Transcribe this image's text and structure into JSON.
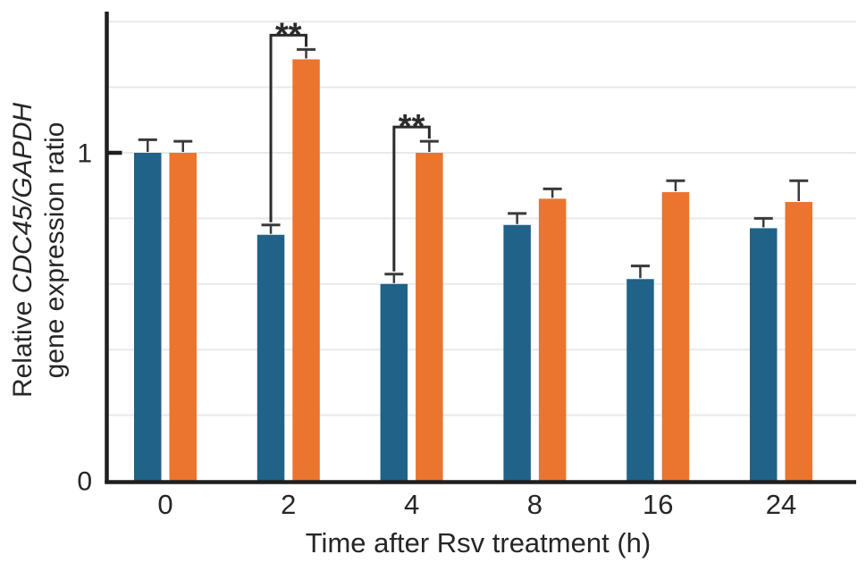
{
  "chart_data": {
    "type": "bar",
    "title": "",
    "xlabel": "Time after Rsv treatment (h)",
    "ylabel": {
      "line1_regular": "Relative ",
      "line1_italic": "CDC45/GAPDH",
      "line2": "gene expression ratio"
    },
    "categories": [
      "0",
      "2",
      "4",
      "8",
      "16",
      "24"
    ],
    "series": [
      {
        "name": "blue-bars",
        "color": "#206288",
        "values": [
          1.0,
          0.75,
          0.6,
          0.78,
          0.615,
          0.77
        ],
        "errors": [
          0.04,
          0.03,
          0.03,
          0.035,
          0.04,
          0.03
        ]
      },
      {
        "name": "orange-bars",
        "color": "#eb742f",
        "values": [
          1.0,
          1.285,
          1.0,
          0.86,
          0.88,
          0.85
        ],
        "errors": [
          0.035,
          0.03,
          0.035,
          0.03,
          0.035,
          0.065
        ]
      }
    ],
    "significance": [
      {
        "category": "2",
        "label": "**"
      },
      {
        "category": "4",
        "label": "**"
      }
    ],
    "yticks": [
      {
        "value": 0,
        "label": "0"
      },
      {
        "value": 1,
        "label": "1"
      }
    ],
    "ylim": [
      0,
      1.43
    ],
    "gridline_step": 0.2,
    "grid": true,
    "legend": "none"
  },
  "style": {
    "background": "#ffffff",
    "grid_color": "#e9e9e9",
    "axis_color": "#1f1f1f",
    "text_color": "#262626",
    "error_bar_color": "#3a3a3a",
    "bracket_color": "#2b2b2b"
  }
}
